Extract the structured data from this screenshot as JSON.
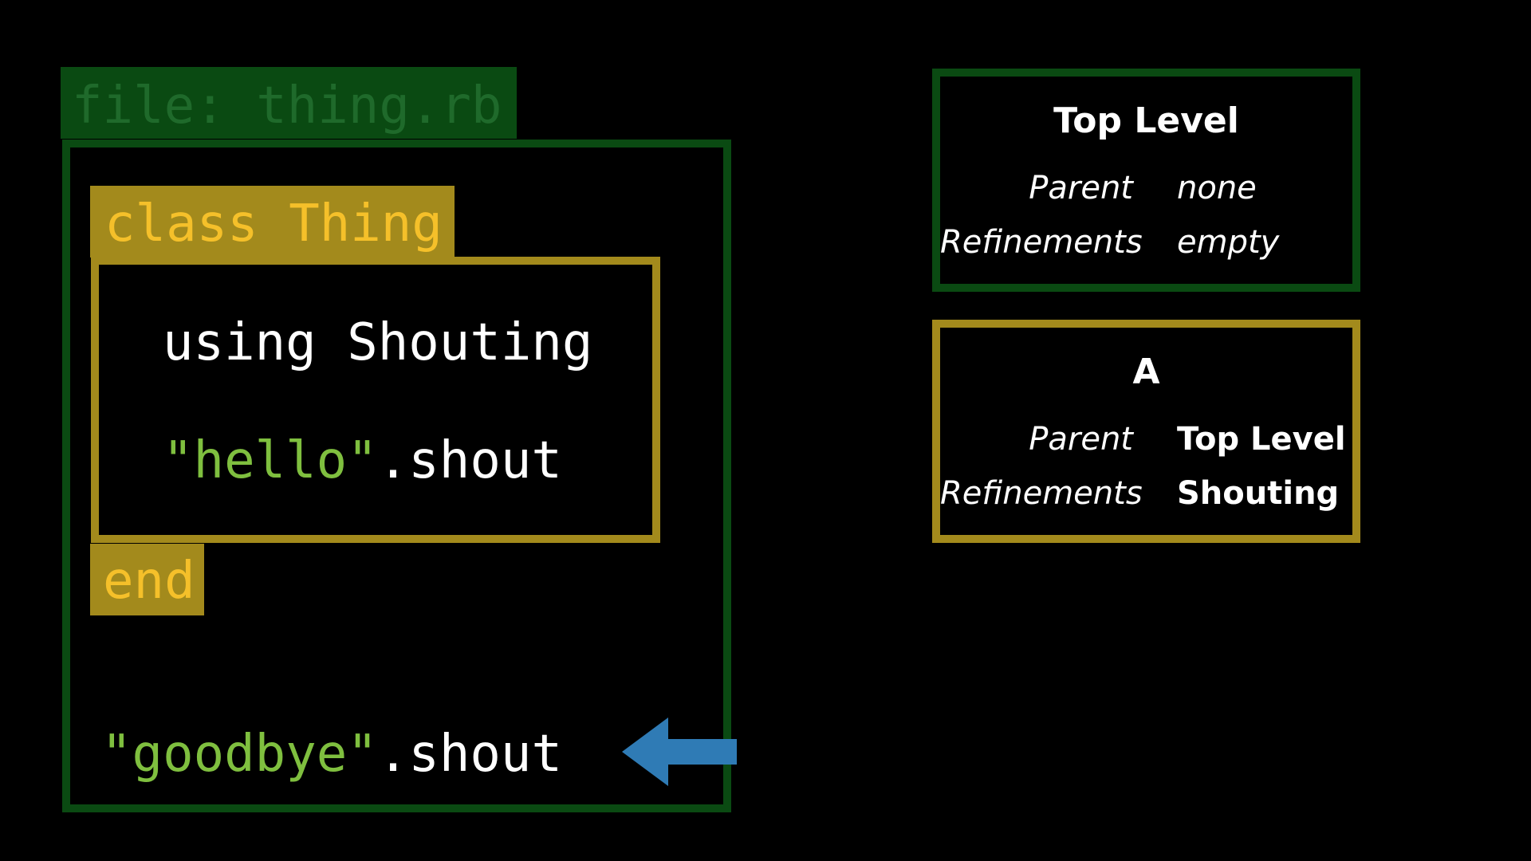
{
  "file": {
    "label": "file: thing.rb"
  },
  "code": {
    "class_open": "class Thing",
    "using_line": "using Shouting",
    "hello_string": "\"hello\"",
    "hello_method": ".shout",
    "class_close": "end",
    "goodbye_string": "\"goodbye\"",
    "goodbye_method": ".shout"
  },
  "scopes": [
    {
      "title": "Top Level",
      "parent_key": "Parent",
      "parent_value": "none",
      "refinements_key": "Refinements",
      "refinements_value": "empty"
    },
    {
      "title": "A",
      "parent_key": "Parent",
      "parent_value": "Top Level",
      "refinements_key": "Refinements",
      "refinements_value": "Shouting"
    }
  ],
  "colors": {
    "background": "#000000",
    "top_level_green": "#0a4a12",
    "class_gold": "#a38a1c",
    "keyword_yellow": "#f5c02a",
    "string_green": "#7fbf3f",
    "arrow_blue": "#2f7bb5"
  },
  "icons": {
    "pointer": "arrow-left-icon"
  }
}
